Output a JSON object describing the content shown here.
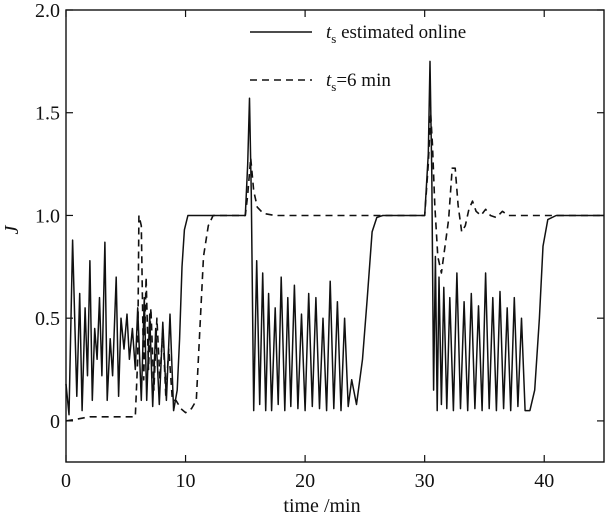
{
  "chart_data": {
    "type": "line",
    "xlabel": "time /min",
    "ylabel": "J",
    "xlim": [
      0,
      45
    ],
    "ylim": [
      -0.2,
      2.0
    ],
    "xticks": [
      0,
      10,
      20,
      30,
      40
    ],
    "xtick_labels": [
      "0",
      "10",
      "20",
      "30",
      "40"
    ],
    "yticks": [
      0,
      0.5,
      1.0,
      1.5,
      2.0
    ],
    "ytick_labels": [
      "0",
      "0.5",
      "1.0",
      "1.5",
      "2.0"
    ],
    "grid": false,
    "legend_position": "top-right",
    "legend": [
      {
        "label_main": "t",
        "label_sub": "s",
        "label_rest": " estimated online",
        "style": "solid"
      },
      {
        "label_main": "t",
        "label_sub": "s",
        "label_rest": "=6 min",
        "style": "dashed"
      }
    ],
    "series": [
      {
        "style": "solid",
        "points": [
          [
            0,
            0.18
          ],
          [
            0.25,
            0.03
          ],
          [
            0.55,
            0.88
          ],
          [
            0.9,
            0.12
          ],
          [
            1.15,
            0.62
          ],
          [
            1.35,
            0.05
          ],
          [
            1.6,
            0.55
          ],
          [
            1.8,
            0.22
          ],
          [
            2.0,
            0.78
          ],
          [
            2.2,
            0.1
          ],
          [
            2.4,
            0.45
          ],
          [
            2.6,
            0.3
          ],
          [
            2.8,
            0.6
          ],
          [
            3.0,
            0.22
          ],
          [
            3.25,
            0.87
          ],
          [
            3.45,
            0.1
          ],
          [
            3.7,
            0.4
          ],
          [
            3.9,
            0.22
          ],
          [
            4.2,
            0.7
          ],
          [
            4.4,
            0.12
          ],
          [
            4.6,
            0.5
          ],
          [
            4.85,
            0.35
          ],
          [
            5.1,
            0.52
          ],
          [
            5.3,
            0.3
          ],
          [
            5.55,
            0.45
          ],
          [
            5.8,
            0.25
          ],
          [
            6.0,
            0.55
          ],
          [
            6.3,
            0.1
          ],
          [
            6.55,
            0.6
          ],
          [
            6.75,
            0.1
          ],
          [
            7.0,
            0.52
          ],
          [
            7.25,
            0.07
          ],
          [
            7.5,
            0.45
          ],
          [
            7.8,
            0.08
          ],
          [
            8.1,
            0.48
          ],
          [
            8.4,
            0.1
          ],
          [
            8.7,
            0.52
          ],
          [
            9.0,
            0.05
          ],
          [
            9.3,
            0.15
          ],
          [
            9.5,
            0.4
          ],
          [
            9.7,
            0.75
          ],
          [
            9.9,
            0.93
          ],
          [
            10.2,
            1.0
          ],
          [
            11.0,
            1.0
          ],
          [
            12.0,
            1.0
          ],
          [
            13.0,
            1.0
          ],
          [
            14.0,
            1.0
          ],
          [
            15.0,
            1.0
          ],
          [
            15.2,
            1.25
          ],
          [
            15.35,
            1.57
          ],
          [
            15.5,
            1.1
          ],
          [
            15.7,
            0.05
          ],
          [
            15.95,
            0.78
          ],
          [
            16.2,
            0.08
          ],
          [
            16.45,
            0.72
          ],
          [
            16.7,
            0.05
          ],
          [
            16.95,
            0.62
          ],
          [
            17.2,
            0.05
          ],
          [
            17.5,
            0.55
          ],
          [
            17.75,
            0.08
          ],
          [
            18.0,
            0.7
          ],
          [
            18.3,
            0.05
          ],
          [
            18.55,
            0.6
          ],
          [
            18.8,
            0.07
          ],
          [
            19.1,
            0.66
          ],
          [
            19.4,
            0.06
          ],
          [
            19.7,
            0.52
          ],
          [
            20.0,
            0.05
          ],
          [
            20.3,
            0.62
          ],
          [
            20.6,
            0.07
          ],
          [
            20.9,
            0.6
          ],
          [
            21.2,
            0.06
          ],
          [
            21.5,
            0.5
          ],
          [
            21.8,
            0.05
          ],
          [
            22.1,
            0.68
          ],
          [
            22.4,
            0.06
          ],
          [
            22.7,
            0.58
          ],
          [
            23.0,
            0.05
          ],
          [
            23.3,
            0.5
          ],
          [
            23.6,
            0.07
          ],
          [
            23.9,
            0.2
          ],
          [
            24.3,
            0.08
          ],
          [
            24.8,
            0.3
          ],
          [
            25.2,
            0.6
          ],
          [
            25.6,
            0.92
          ],
          [
            26.0,
            0.99
          ],
          [
            26.5,
            1.0
          ],
          [
            28.0,
            1.0
          ],
          [
            29.5,
            1.0
          ],
          [
            30.0,
            1.0
          ],
          [
            30.3,
            1.3
          ],
          [
            30.45,
            1.75
          ],
          [
            30.6,
            1.2
          ],
          [
            30.75,
            0.15
          ],
          [
            30.9,
            0.8
          ],
          [
            31.05,
            0.05
          ],
          [
            31.2,
            0.7
          ],
          [
            31.4,
            0.08
          ],
          [
            31.6,
            0.65
          ],
          [
            31.85,
            0.06
          ],
          [
            32.1,
            0.6
          ],
          [
            32.4,
            0.05
          ],
          [
            32.7,
            0.72
          ],
          [
            33.0,
            0.06
          ],
          [
            33.3,
            0.58
          ],
          [
            33.6,
            0.05
          ],
          [
            33.9,
            0.62
          ],
          [
            34.2,
            0.06
          ],
          [
            34.5,
            0.56
          ],
          [
            34.8,
            0.05
          ],
          [
            35.1,
            0.72
          ],
          [
            35.4,
            0.06
          ],
          [
            35.7,
            0.6
          ],
          [
            36.0,
            0.05
          ],
          [
            36.3,
            0.63
          ],
          [
            36.6,
            0.06
          ],
          [
            36.9,
            0.55
          ],
          [
            37.2,
            0.05
          ],
          [
            37.5,
            0.6
          ],
          [
            37.8,
            0.07
          ],
          [
            38.1,
            0.5
          ],
          [
            38.4,
            0.05
          ],
          [
            38.8,
            0.05
          ],
          [
            39.2,
            0.15
          ],
          [
            39.6,
            0.5
          ],
          [
            39.9,
            0.85
          ],
          [
            40.3,
            0.98
          ],
          [
            41.0,
            1.0
          ],
          [
            42.0,
            1.0
          ],
          [
            43.5,
            1.0
          ],
          [
            45.0,
            1.0
          ]
        ]
      },
      {
        "style": "dashed",
        "points": [
          [
            0,
            0.0
          ],
          [
            1.0,
            0.01
          ],
          [
            2.0,
            0.02
          ],
          [
            3.0,
            0.02
          ],
          [
            4.0,
            0.02
          ],
          [
            5.0,
            0.02
          ],
          [
            5.8,
            0.02
          ],
          [
            6.0,
            0.3
          ],
          [
            6.1,
            1.0
          ],
          [
            6.3,
            0.95
          ],
          [
            6.5,
            0.2
          ],
          [
            6.7,
            0.7
          ],
          [
            6.9,
            0.25
          ],
          [
            7.1,
            0.55
          ],
          [
            7.35,
            0.15
          ],
          [
            7.6,
            0.5
          ],
          [
            7.85,
            0.2
          ],
          [
            8.1,
            0.45
          ],
          [
            8.35,
            0.12
          ],
          [
            8.6,
            0.35
          ],
          [
            8.9,
            0.1
          ],
          [
            9.2,
            0.1
          ],
          [
            9.6,
            0.06
          ],
          [
            10.0,
            0.04
          ],
          [
            10.5,
            0.06
          ],
          [
            10.9,
            0.1
          ],
          [
            11.2,
            0.45
          ],
          [
            11.5,
            0.8
          ],
          [
            11.9,
            0.95
          ],
          [
            12.3,
            1.0
          ],
          [
            13.0,
            1.0
          ],
          [
            14.0,
            1.0
          ],
          [
            15.0,
            1.0
          ],
          [
            15.2,
            1.1
          ],
          [
            15.45,
            1.28
          ],
          [
            15.7,
            1.12
          ],
          [
            16.0,
            1.04
          ],
          [
            16.5,
            1.01
          ],
          [
            17.5,
            1.0
          ],
          [
            19.0,
            1.0
          ],
          [
            21.0,
            1.0
          ],
          [
            24.0,
            1.0
          ],
          [
            27.0,
            1.0
          ],
          [
            29.5,
            1.0
          ],
          [
            30.0,
            1.0
          ],
          [
            30.3,
            1.25
          ],
          [
            30.5,
            1.5
          ],
          [
            30.65,
            1.35
          ],
          [
            30.85,
            1.05
          ],
          [
            31.1,
            0.8
          ],
          [
            31.4,
            0.72
          ],
          [
            31.7,
            0.85
          ],
          [
            32.0,
            0.98
          ],
          [
            32.3,
            1.23
          ],
          [
            32.55,
            1.23
          ],
          [
            32.8,
            1.05
          ],
          [
            33.1,
            0.92
          ],
          [
            33.4,
            0.95
          ],
          [
            33.7,
            1.03
          ],
          [
            34.0,
            1.07
          ],
          [
            34.3,
            1.02
          ],
          [
            34.7,
            1.0
          ],
          [
            35.1,
            1.03
          ],
          [
            35.5,
            1.0
          ],
          [
            36.0,
            0.99
          ],
          [
            36.5,
            1.02
          ],
          [
            37.0,
            1.0
          ],
          [
            38.0,
            1.0
          ],
          [
            39.0,
            1.0
          ],
          [
            40.0,
            1.0
          ],
          [
            42.0,
            1.0
          ],
          [
            45.0,
            1.0
          ]
        ]
      }
    ]
  }
}
